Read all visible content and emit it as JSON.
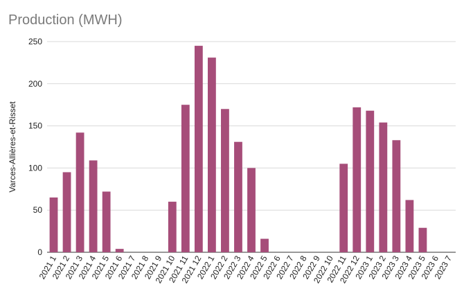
{
  "chart_data": {
    "type": "bar",
    "title": "Production (MWH)",
    "xlabel": "",
    "ylabel": "Varces-Allières-et-Risset",
    "ylim": [
      0,
      250
    ],
    "yticks": [
      0,
      50,
      100,
      150,
      200,
      250
    ],
    "grid": true,
    "bar_color": "#a64d79",
    "categories": [
      "2021 1",
      "2021 2",
      "2021 3",
      "2021 4",
      "2021 5",
      "2021 6",
      "2021 7",
      "2021 8",
      "2021 9",
      "2021 10",
      "2021 11",
      "2021 12",
      "2022 1",
      "2022 2",
      "2022 3",
      "2022 4",
      "2022 5",
      "2022 6",
      "2022 7",
      "2022 8",
      "2022 9",
      "2022 10",
      "2022 11",
      "2022 12",
      "2023 1",
      "2023 2",
      "2023 3",
      "2023 4",
      "2023 5",
      "2023 6",
      "2023 7"
    ],
    "values": [
      65,
      95,
      142,
      109,
      72,
      4,
      0,
      0,
      0,
      60,
      175,
      245,
      231,
      170,
      131,
      100,
      16,
      0,
      0,
      0,
      0,
      0,
      105,
      172,
      168,
      154,
      133,
      62,
      29,
      0,
      0
    ]
  }
}
